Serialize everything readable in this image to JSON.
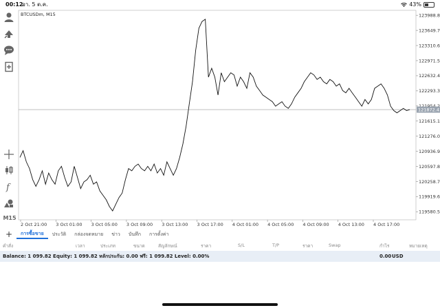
{
  "status_bar": {
    "time": "00:12",
    "date": "อา. 5 ต.ค.",
    "battery": "43%"
  },
  "left_toolbar": {
    "icons": [
      "account-icon",
      "signal-icon",
      "chat-icon",
      "add-document-icon",
      "crosshair-icon",
      "candlestick-icon",
      "function-icon",
      "shapes-icon"
    ],
    "timeframe": "M15"
  },
  "chart_data": {
    "type": "line",
    "title": "BTCUSDm, M15",
    "current_price": "121872.41",
    "ylim": [
      119400,
      124100
    ],
    "y_ticks": [
      "123988.80",
      "123649.70",
      "123310.60",
      "122971.50",
      "122632.40",
      "122293.30",
      "121954.20",
      "121615.10",
      "121276.00",
      "120936.90",
      "120597.80",
      "120258.70",
      "119919.60",
      "119580.50"
    ],
    "x_ticks": [
      "2 Oct 21:00",
      "3 Oct 01:00",
      "3 Oct 05:00",
      "3 Oct 09:00",
      "3 Oct 13:00",
      "3 Oct 17:00",
      "4 Oct 01:00",
      "4 Oct 05:00",
      "4 Oct 09:00",
      "4 Oct 13:00",
      "4 Oct 17:00"
    ],
    "series": [
      {
        "values": [
          120800,
          120950,
          120700,
          120550,
          120300,
          120150,
          120300,
          120500,
          120200,
          120450,
          120300,
          120200,
          120500,
          120600,
          120350,
          120150,
          120250,
          120600,
          120350,
          120100,
          120250,
          120300,
          120400,
          120200,
          120250,
          120050,
          119950,
          119850,
          119700,
          119600,
          119750,
          119900,
          120000,
          120300,
          120550,
          120500,
          120600,
          120650,
          120550,
          120500,
          120600,
          120500,
          120650,
          120450,
          120550,
          120400,
          120700,
          120550,
          120400,
          120550,
          120800,
          121100,
          121500,
          122000,
          122500,
          123200,
          123700,
          123850,
          123900,
          122600,
          122800,
          122600,
          122200,
          122700,
          122500,
          122600,
          122700,
          122650,
          122400,
          122600,
          122500,
          122350,
          122700,
          122600,
          122400,
          122300,
          122200,
          122150,
          122100,
          122050,
          121950,
          122000,
          122050,
          121950,
          121900,
          122000,
          122150,
          122250,
          122350,
          122500,
          122600,
          122700,
          122650,
          122550,
          122600,
          122500,
          122450,
          122550,
          122500,
          122400,
          122450,
          122300,
          122250,
          122350,
          122250,
          122150,
          122050,
          121950,
          122100,
          122000,
          122100,
          122350,
          122400,
          122450,
          122350,
          122200,
          121950,
          121850,
          121800,
          121850,
          121900,
          121850,
          121872
        ]
      }
    ]
  },
  "bottom_tabs": {
    "plus": "+",
    "items": [
      "การซื้อขาย",
      "ประวัติ",
      "กล่องจดหมาย",
      "ข่าว",
      "บันทึก",
      "การตั้งค่า"
    ]
  },
  "table_headers": [
    "คำสั่ง",
    "เวลา",
    "ประเภท",
    "ขนาด",
    "สัญลักษณ์",
    "ราคา",
    "S/L",
    "T/P",
    "ราคา",
    "Swap",
    "กำไร",
    "หมายเหตุ"
  ],
  "balance_row": {
    "text": "Balance: 1 099.82  Equity: 1 099.82  หลักประกัน: 0.00  ฟรี: 1 099.82  Level: 0.00%",
    "profit": "0.00",
    "currency": "USD"
  }
}
